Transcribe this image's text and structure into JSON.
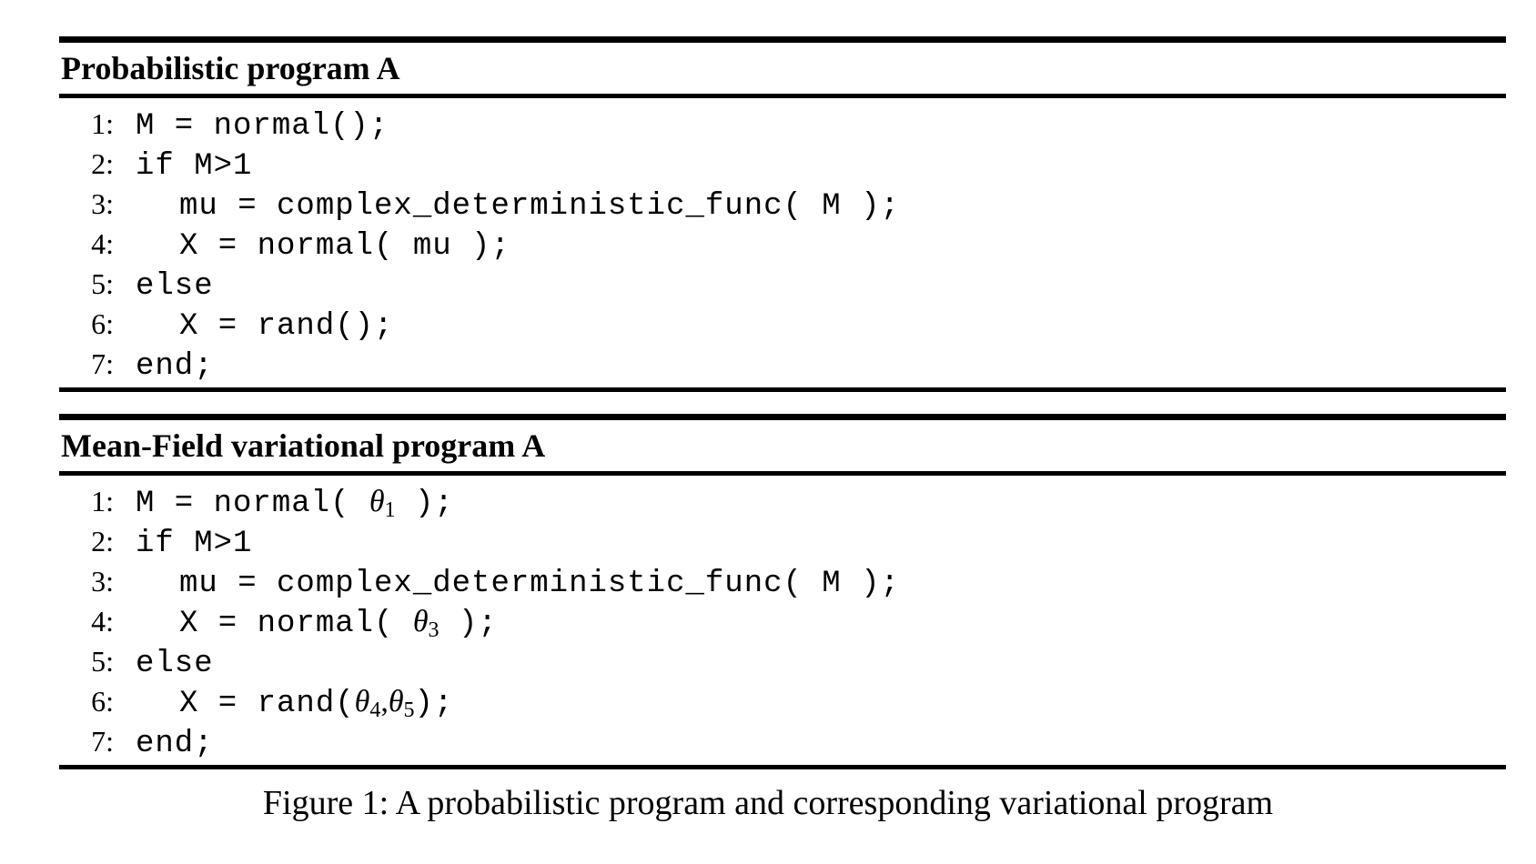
{
  "algorithm_a": {
    "title": "Probabilistic program A",
    "lines": [
      {
        "num": "1:",
        "code": "M = normal();"
      },
      {
        "num": "2:",
        "code": "if M>1"
      },
      {
        "num": "3:",
        "code": "mu = complex_deterministic_func( M );"
      },
      {
        "num": "4:",
        "code": "X = normal( mu );"
      },
      {
        "num": "5:",
        "code": "else"
      },
      {
        "num": "6:",
        "code": "X = rand();"
      },
      {
        "num": "7:",
        "code": "end;"
      }
    ]
  },
  "algorithm_b": {
    "title": "Mean-Field variational program A",
    "lines": [
      {
        "num": "1:",
        "code_before": "M = normal( ",
        "theta": "θ",
        "sub": "1",
        "code_after": " );"
      },
      {
        "num": "2:",
        "code": "if M>1"
      },
      {
        "num": "3:",
        "code": "mu = complex_deterministic_func( M );"
      },
      {
        "num": "4:",
        "code_before": "X = normal( ",
        "theta": "θ",
        "sub": "3",
        "code_after": " );"
      },
      {
        "num": "5:",
        "code": "else"
      },
      {
        "num": "6:",
        "code_before": "X = rand(",
        "theta_a": "θ",
        "sub_a": "4",
        "comma": ",",
        "theta_b": "θ",
        "sub_b": "5",
        "code_after": ");"
      },
      {
        "num": "7:",
        "code": "end;"
      }
    ]
  },
  "caption": "Figure 1: A probabilistic program and corresponding variational program"
}
